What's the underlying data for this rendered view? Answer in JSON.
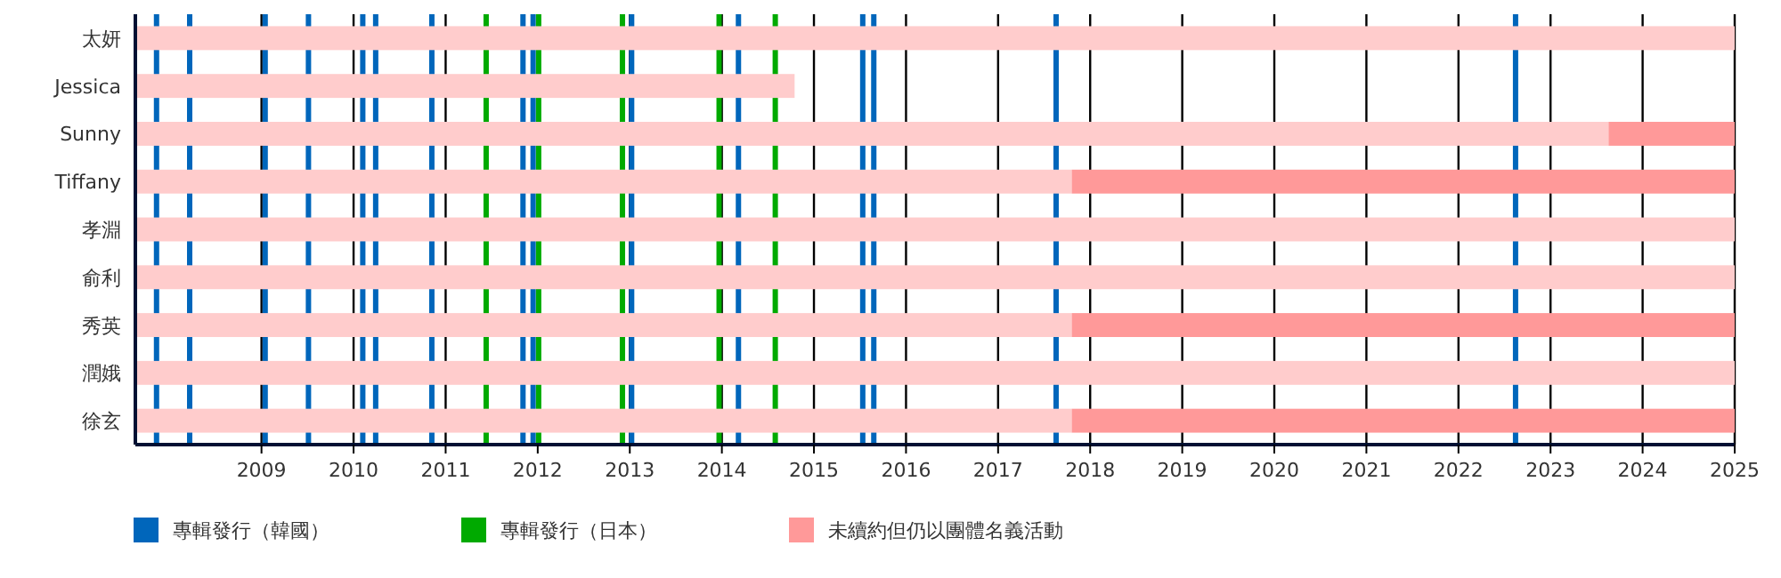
{
  "chart_data": {
    "type": "bar",
    "orientation": "horizontal",
    "categories": [
      "太妍",
      "Jessica",
      "Sunny",
      "Tiffany",
      "孝淵",
      "俞利",
      "秀英",
      "潤娥",
      "徐玄"
    ],
    "series": [
      {
        "color": "#ffcccc",
        "base": [
          2007.63,
          2007.63,
          2007.63,
          2007.63,
          2007.63,
          2007.63,
          2007.63,
          2007.63,
          2007.63
        ],
        "values": [
          17.37,
          7.16,
          16.0,
          10.17,
          17.37,
          17.37,
          10.17,
          17.37,
          10.17
        ]
      },
      {
        "name": "未續約但仍以團體名義活動",
        "color": "#ff9999",
        "base": [
          null,
          null,
          2023.63,
          2017.8,
          null,
          null,
          2017.8,
          null,
          2017.8
        ],
        "values": [
          null,
          null,
          1.37,
          7.2,
          null,
          null,
          7.2,
          null,
          7.2
        ]
      }
    ],
    "xlim": [
      2007.63,
      2025
    ],
    "xticks": [
      2009,
      2010,
      2011,
      2012,
      2013,
      2014,
      2015,
      2016,
      2017,
      2018,
      2019,
      2020,
      2021,
      2022,
      2023,
      2024,
      2025
    ],
    "grid": "x",
    "legend": "bottom",
    "ref_lines": [
      {
        "axis": "x",
        "value": 2007.86,
        "color": "#0066bb",
        "label": "專輯發行（韓國）"
      },
      {
        "axis": "x",
        "value": 2008.22,
        "color": "#0066bb"
      },
      {
        "axis": "x",
        "value": 2009.04,
        "color": "#0066bb"
      },
      {
        "axis": "x",
        "value": 2009.51,
        "color": "#0066bb"
      },
      {
        "axis": "x",
        "value": 2010.1,
        "color": "#0066bb"
      },
      {
        "axis": "x",
        "value": 2010.24,
        "color": "#0066bb"
      },
      {
        "axis": "x",
        "value": 2010.85,
        "color": "#0066bb"
      },
      {
        "axis": "x",
        "value": 2011.84,
        "color": "#0066bb"
      },
      {
        "axis": "x",
        "value": 2011.95,
        "color": "#0066bb"
      },
      {
        "axis": "x",
        "value": 2013.02,
        "color": "#0066bb"
      },
      {
        "axis": "x",
        "value": 2014.18,
        "color": "#0066bb"
      },
      {
        "axis": "x",
        "value": 2015.53,
        "color": "#0066bb"
      },
      {
        "axis": "x",
        "value": 2015.65,
        "color": "#0066bb"
      },
      {
        "axis": "x",
        "value": 2017.63,
        "color": "#0066bb"
      },
      {
        "axis": "x",
        "value": 2022.62,
        "color": "#0066bb"
      },
      {
        "axis": "x",
        "value": 2011.44,
        "color": "#00aa00",
        "label": "專輯發行（日本）"
      },
      {
        "axis": "x",
        "value": 2012.01,
        "color": "#00aa00"
      },
      {
        "axis": "x",
        "value": 2012.92,
        "color": "#00aa00"
      },
      {
        "axis": "x",
        "value": 2013.97,
        "color": "#00aa00"
      },
      {
        "axis": "x",
        "value": 2014.58,
        "color": "#00aa00"
      }
    ]
  }
}
